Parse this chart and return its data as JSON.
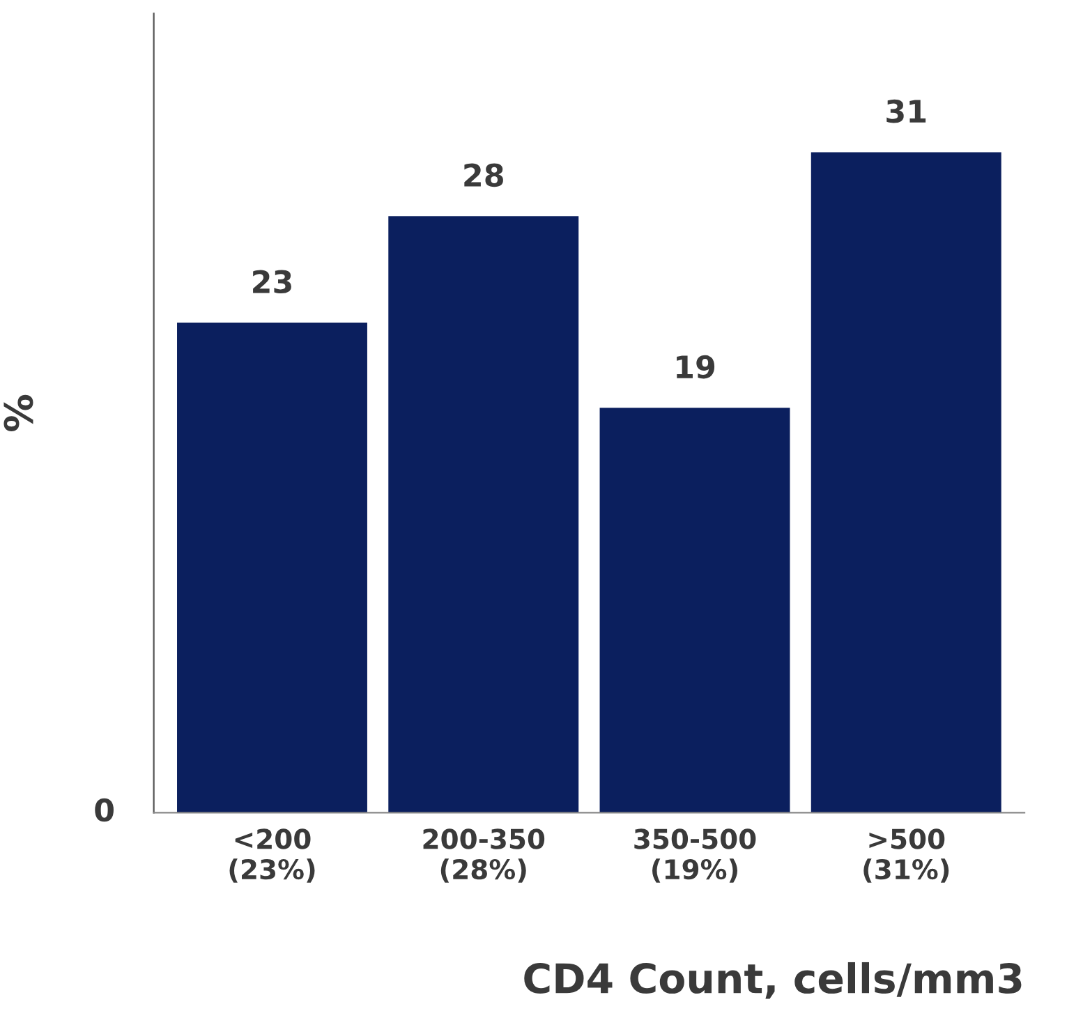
{
  "chart_data": {
    "type": "bar",
    "xlabel": "CD4 Count, cells/mm3",
    "ylabel": "%",
    "categories": [
      "<200\n(23%)",
      "200-350\n(28%)",
      "350-500\n(19%)",
      ">500\n(31%)"
    ],
    "values": [
      23,
      28,
      19,
      31
    ],
    "data_labels": true,
    "color": "#0b1f5e",
    "annotations": [
      "0"
    ],
    "grid": false,
    "legend": false
  }
}
